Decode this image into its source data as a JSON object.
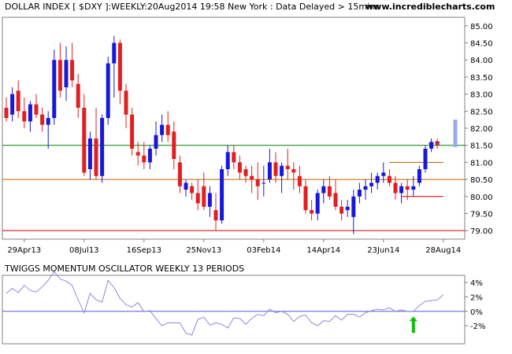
{
  "chart_data": [
    {
      "type": "candlestick",
      "title": "DOLLAR INDEX [ $DXY ]:WEEKLY:20Aug2014 19:58 New York : Data Delayed > 15mins",
      "watermark": "www.incrediblecharts.com",
      "ylim": [
        78.75,
        85.25
      ],
      "y_ticks": [
        "85.00",
        "84.50",
        "84.00",
        "83.50",
        "83.00",
        "82.50",
        "82.00",
        "81.50",
        "81.00",
        "80.50",
        "80.00",
        "79.50",
        "79.00"
      ],
      "x_ticks": [
        {
          "label": "29Apr13",
          "index": 3
        },
        {
          "label": "08Jul13",
          "index": 13
        },
        {
          "label": "16Sep13",
          "index": 23
        },
        {
          "label": "25Nov13",
          "index": 33
        },
        {
          "label": "03Feb14",
          "index": 43
        },
        {
          "label": "14Apr14",
          "index": 53
        },
        {
          "label": "23Jun14",
          "index": 63
        },
        {
          "label": "28Aug14",
          "index": 73
        }
      ],
      "horizontal_lines": [
        {
          "value": 81.5,
          "color": "#008000"
        },
        {
          "value": 80.5,
          "color": "#c06000"
        },
        {
          "value": 79.0,
          "color": "#cc0000"
        }
      ],
      "segments": [
        {
          "value": 81.0,
          "from_index": 64,
          "to_index": 73,
          "color": "#c06000"
        },
        {
          "value": 80.0,
          "from_index": 66,
          "to_index": 73,
          "color": "#cc0000"
        }
      ],
      "colors": {
        "up": "#1818d8",
        "down": "#e02020",
        "projection": "#9aa8f0"
      },
      "candles": [
        [
          82.6,
          82.9,
          82.2,
          82.3
        ],
        [
          82.4,
          83.2,
          82.2,
          83.0
        ],
        [
          83.1,
          83.4,
          82.3,
          82.5
        ],
        [
          82.5,
          82.9,
          82.0,
          82.2
        ],
        [
          82.2,
          82.8,
          81.9,
          82.7
        ],
        [
          82.7,
          83.0,
          82.3,
          82.4
        ],
        [
          82.4,
          82.6,
          81.9,
          82.1
        ],
        [
          82.1,
          82.5,
          81.4,
          82.3
        ],
        [
          82.3,
          84.3,
          82.1,
          84.0
        ],
        [
          84.0,
          84.5,
          82.9,
          83.1
        ],
        [
          83.2,
          84.4,
          82.8,
          84.0
        ],
        [
          84.0,
          84.5,
          83.2,
          83.4
        ],
        [
          83.3,
          83.6,
          82.3,
          82.6
        ],
        [
          82.6,
          83.0,
          80.6,
          80.7
        ],
        [
          80.8,
          81.9,
          80.5,
          81.7
        ],
        [
          81.7,
          82.6,
          80.5,
          80.6
        ],
        [
          80.6,
          82.4,
          80.4,
          82.3
        ],
        [
          82.3,
          84.1,
          82.1,
          83.9
        ],
        [
          83.9,
          84.7,
          82.9,
          84.5
        ],
        [
          84.5,
          84.6,
          82.7,
          83.1
        ],
        [
          83.1,
          83.3,
          82.0,
          82.4
        ],
        [
          82.4,
          82.6,
          81.2,
          81.4
        ],
        [
          81.3,
          81.6,
          80.9,
          81.2
        ],
        [
          81.2,
          81.6,
          80.8,
          81.0
        ],
        [
          81.0,
          81.5,
          80.8,
          81.4
        ],
        [
          81.4,
          82.2,
          81.2,
          81.8
        ],
        [
          81.8,
          82.4,
          81.6,
          82.1
        ],
        [
          82.1,
          82.5,
          81.6,
          81.8
        ],
        [
          81.9,
          82.2,
          80.8,
          81.1
        ],
        [
          81.0,
          81.2,
          80.1,
          80.3
        ],
        [
          80.2,
          80.5,
          80.0,
          80.4
        ],
        [
          80.3,
          80.4,
          79.9,
          80.1
        ],
        [
          80.1,
          80.5,
          79.6,
          79.8
        ],
        [
          80.3,
          80.7,
          79.6,
          79.7
        ],
        [
          79.7,
          80.3,
          79.4,
          80.1
        ],
        [
          79.6,
          80.1,
          79.0,
          79.3
        ],
        [
          79.3,
          80.9,
          79.2,
          80.8
        ],
        [
          80.8,
          81.5,
          80.6,
          81.3
        ],
        [
          81.3,
          81.5,
          80.8,
          81.0
        ],
        [
          81.0,
          81.2,
          80.5,
          80.7
        ],
        [
          80.8,
          80.9,
          80.4,
          80.6
        ],
        [
          80.6,
          80.9,
          80.1,
          80.5
        ],
        [
          80.5,
          81.0,
          79.9,
          80.3
        ],
        [
          80.4,
          80.9,
          80.0,
          80.4
        ],
        [
          80.5,
          81.4,
          80.4,
          81.0
        ],
        [
          81.0,
          81.3,
          80.4,
          80.6
        ],
        [
          80.6,
          81.0,
          80.1,
          80.9
        ],
        [
          80.9,
          81.4,
          80.5,
          80.8
        ],
        [
          80.8,
          81.0,
          80.2,
          80.7
        ],
        [
          80.6,
          80.9,
          80.1,
          80.3
        ],
        [
          80.3,
          80.5,
          79.5,
          79.6
        ],
        [
          79.6,
          79.9,
          79.3,
          79.5
        ],
        [
          79.5,
          80.2,
          79.3,
          80.1
        ],
        [
          80.1,
          80.5,
          79.8,
          80.3
        ],
        [
          80.3,
          80.6,
          79.9,
          80.0
        ],
        [
          80.1,
          80.5,
          79.6,
          79.7
        ],
        [
          79.7,
          79.9,
          79.3,
          79.5
        ],
        [
          79.6,
          79.9,
          79.4,
          79.7
        ],
        [
          79.4,
          80.2,
          78.9,
          80.0
        ],
        [
          80.0,
          80.4,
          79.8,
          80.2
        ],
        [
          80.2,
          80.5,
          79.9,
          80.3
        ],
        [
          80.3,
          80.7,
          80.1,
          80.4
        ],
        [
          80.4,
          80.7,
          80.2,
          80.6
        ],
        [
          80.6,
          81.0,
          80.4,
          80.7
        ],
        [
          80.6,
          80.8,
          80.3,
          80.4
        ],
        [
          80.4,
          80.6,
          79.9,
          80.1
        ],
        [
          80.1,
          80.4,
          79.8,
          80.3
        ],
        [
          80.3,
          80.5,
          79.9,
          80.2
        ],
        [
          80.2,
          80.6,
          80.0,
          80.3
        ],
        [
          80.4,
          80.9,
          80.3,
          80.8
        ],
        [
          80.8,
          81.5,
          80.7,
          81.4
        ],
        [
          81.4,
          81.7,
          81.3,
          81.6
        ],
        [
          81.6,
          81.7,
          81.4,
          81.5
        ]
      ],
      "projection": {
        "index": 75,
        "low": 81.45,
        "high": 82.25
      },
      "tick_marks": [
        {
          "index": 71,
          "value": 81.55
        },
        {
          "index": 72,
          "value": 81.6
        }
      ]
    },
    {
      "type": "line",
      "title": "TWIGGS MOMENTUM OSCILLATOR WEEKLY 13 PERIODS",
      "ylim": [
        -4.5,
        5.0
      ],
      "y_ticks": [
        "4%",
        "2%",
        "0%",
        "-2%"
      ],
      "zero_line_color": "#5a5ad0",
      "line_color": "#8a8ae0",
      "signal": {
        "index": 68,
        "direction": "up",
        "color": "#10c010"
      },
      "values": [
        2.5,
        3.2,
        2.6,
        3.6,
        2.9,
        2.7,
        3.4,
        4.3,
        5.5,
        4.5,
        4.2,
        3.6,
        1.6,
        -0.2,
        2.5,
        1.6,
        1.3,
        4.3,
        3.3,
        1.8,
        0.9,
        0.6,
        1.2,
        0.0,
        0.1,
        -1.0,
        -2.0,
        -1.6,
        -1.6,
        -1.6,
        -3.0,
        -3.3,
        -1.1,
        -0.8,
        -1.9,
        -1.6,
        -1.8,
        -2.3,
        -0.9,
        -1.0,
        -1.8,
        -1.0,
        -0.4,
        -0.6,
        0.3,
        -0.2,
        0.0,
        -0.4,
        -1.4,
        -0.7,
        -0.5,
        -1.6,
        -2.0,
        -1.3,
        -1.4,
        -0.6,
        -1.2,
        -0.4,
        -0.4,
        -0.8,
        -0.2,
        0.1,
        0.3,
        0.2,
        0.5,
        0.0,
        0.2,
        0.0,
        0.0,
        0.8,
        1.4,
        1.5,
        1.6,
        2.3
      ]
    }
  ]
}
